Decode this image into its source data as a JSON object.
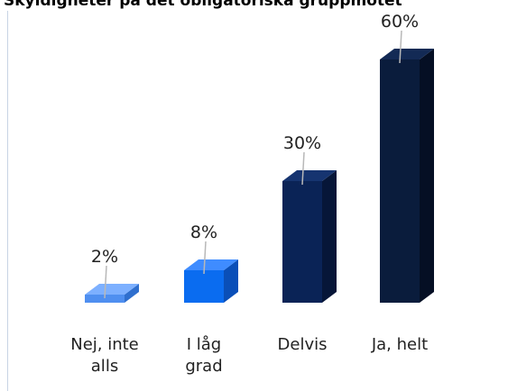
{
  "chart_data": {
    "type": "bar",
    "title": "Skyldigheter på det obligatoriska gruppmötet",
    "xlabel": "",
    "ylabel": "",
    "ylim": [
      0,
      60
    ],
    "grid": false,
    "legend": "none",
    "categories": [
      [
        "Nej, inte",
        "alls"
      ],
      [
        "I låg",
        "grad"
      ],
      [
        "Delvis"
      ],
      [
        "Ja, helt"
      ]
    ],
    "values": [
      2,
      8,
      30,
      60
    ],
    "value_labels": [
      "2%",
      "8%",
      "30%",
      "60%"
    ],
    "colors": [
      {
        "front": "#4f8ff0",
        "top": "#7db0ff",
        "side": "#2f6fce"
      },
      {
        "front": "#0a6cf0",
        "top": "#3f8cff",
        "side": "#0a4fb8"
      },
      {
        "front": "#0a2356",
        "top": "#163470",
        "side": "#061638"
      },
      {
        "front": "#0a1c3c",
        "top": "#132a55",
        "side": "#050f24"
      }
    ]
  }
}
